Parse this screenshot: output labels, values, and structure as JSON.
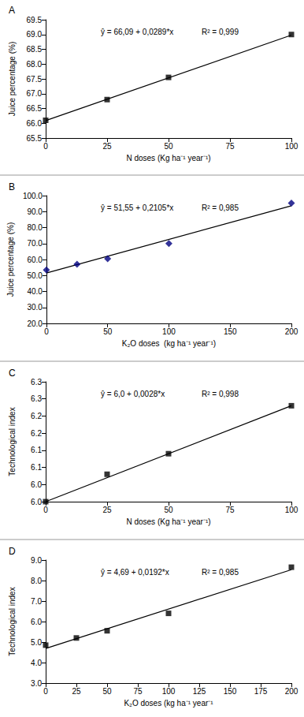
{
  "chart_data": [
    {
      "type": "scatter",
      "title": "A",
      "x_label": "N doses (Kg ha⁻¹ year⁻¹)",
      "y_label": "Juice percentage (%)",
      "x": [
        0,
        25,
        50,
        100
      ],
      "values": [
        66.1,
        66.8,
        67.55,
        69.0
      ],
      "color": "#000000",
      "marker": "square",
      "trend_line": {
        "x": [
          0,
          100
        ],
        "values": [
          66.09,
          68.98
        ],
        "color": "#000000"
      },
      "annotations": [
        "ŷ = 66,09 + 0,0289*x",
        "R² = 0,999"
      ],
      "xlim": [
        0,
        100
      ],
      "xticks": [
        0,
        25,
        50,
        75,
        100
      ],
      "ylim": [
        65.5,
        69.5
      ],
      "yticks": [
        65.5,
        {
          "value": 66,
          "label": "66.0"
        },
        66.5,
        {
          "value": 67,
          "label": "67.0"
        },
        67.5,
        {
          "value": 68,
          "label": "68.0"
        },
        68.5,
        {
          "value": 69,
          "label": "69.0"
        },
        69.5
      ],
      "grid": false
    },
    {
      "type": "scatter",
      "title": "B",
      "x_label": "K₂O doses  (kg ha⁻¹ year⁻¹)",
      "y_label": "Juice percentage (%)",
      "x": [
        0,
        25,
        50,
        100,
        200
      ],
      "values": [
        53.5,
        57.0,
        60.5,
        70.0,
        95.3
      ],
      "color": "#000080",
      "marker": "diamond",
      "trend_line": {
        "x": [
          0,
          200
        ],
        "values": [
          51.55,
          93.65
        ],
        "color": "#000000"
      },
      "annotations": [
        "ŷ = 51,55 + 0,2105*x",
        "R² = 0,985"
      ],
      "xlim": [
        0,
        200
      ],
      "xticks": [
        0,
        50,
        100,
        150,
        200
      ],
      "ylim": [
        20,
        100
      ],
      "yticks": [
        {
          "value": 20,
          "label": "20.0"
        },
        {
          "value": 30,
          "label": "30.0"
        },
        {
          "value": 40,
          "label": "40.0"
        },
        {
          "value": 50,
          "label": "50.0"
        },
        {
          "value": 60,
          "label": "60.0"
        },
        {
          "value": 70,
          "label": "70.0"
        },
        {
          "value": 80,
          "label": "80.0"
        },
        {
          "value": 90,
          "label": "90.0"
        },
        {
          "value": 100,
          "label": "100.0"
        }
      ],
      "grid": false
    },
    {
      "type": "scatter",
      "title": "C",
      "x_label": "N doses (Kg ha⁻¹ year⁻¹)",
      "y_label": "Technological index",
      "x": [
        0,
        25,
        50,
        100
      ],
      "values": [
        6.0,
        6.08,
        6.14,
        6.28
      ],
      "color": "#000000",
      "marker": "square",
      "trend_line": {
        "x": [
          0,
          100
        ],
        "values": [
          6.0,
          6.28
        ],
        "color": "#000000"
      },
      "annotations": [
        "ŷ = 6,0 + 0,0028*x",
        "R² = 0,998"
      ],
      "xlim": [
        0,
        100
      ],
      "xticks": [
        0,
        25,
        50,
        75,
        100
      ],
      "ylim": [
        6.0,
        6.35
      ],
      "yticks": [
        {
          "value": 6.0,
          "label": "6.0"
        },
        {
          "value": 6.05,
          "label": "6.0"
        },
        6.1,
        {
          "value": 6.15,
          "label": "6.1"
        },
        6.2,
        {
          "value": 6.25,
          "label": "6.2"
        },
        6.3,
        {
          "value": 6.35,
          "label": "6.3"
        }
      ],
      "grid": false
    },
    {
      "type": "scatter",
      "title": "D",
      "x_label": "K₂O doses (kg ha⁻¹ year⁻¹",
      "y_label": "Technological index",
      "x": [
        0,
        25,
        50,
        100,
        200
      ],
      "values": [
        4.85,
        5.2,
        5.55,
        6.4,
        8.65
      ],
      "color": "#000000",
      "marker": "square",
      "trend_line": {
        "x": [
          0,
          200
        ],
        "values": [
          4.69,
          8.53
        ],
        "color": "#000000"
      },
      "annotations": [
        "ŷ = 4,69 + 0,0192*x",
        "R² = 0,985"
      ],
      "xlim": [
        0,
        200
      ],
      "xticks": [
        0,
        25,
        50,
        75,
        100,
        125,
        150,
        175,
        200
      ],
      "ylim": [
        3,
        9
      ],
      "yticks": [
        {
          "value": 3,
          "label": "3.0"
        },
        {
          "value": 4,
          "label": "4.0"
        },
        {
          "value": 5,
          "label": "5.0"
        },
        {
          "value": 6,
          "label": "6.0"
        },
        {
          "value": 7,
          "label": "7.0"
        },
        {
          "value": 8,
          "label": "8.0"
        },
        {
          "value": 9,
          "label": "9.0"
        }
      ],
      "grid": false
    }
  ]
}
